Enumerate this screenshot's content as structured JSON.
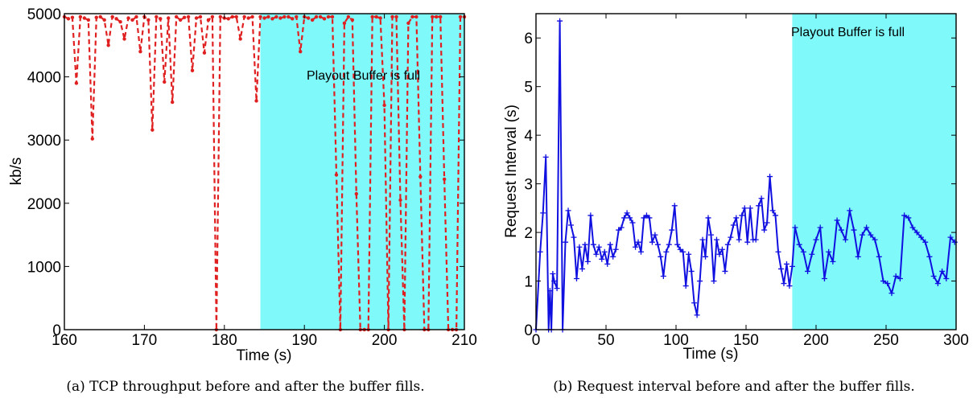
{
  "chart_data": [
    {
      "type": "line",
      "caption": "(a) TCP throughput before and after the buffer fills.",
      "xlabel": "Time (s)",
      "ylabel": "kb/s",
      "xlim": [
        160,
        210
      ],
      "ylim": [
        0,
        5000
      ],
      "xticks": [
        160,
        170,
        180,
        190,
        200,
        210
      ],
      "yticks": [
        0,
        1000,
        2000,
        3000,
        4000,
        5000
      ],
      "grid": false,
      "shaded_region": {
        "x_start": 184.5,
        "x_end": 210,
        "color": "#7ff9fa",
        "label": "Playout Buffer is full"
      },
      "series": [
        {
          "color": "#e02020",
          "style": "dashed-with-dots",
          "x": [
            160.0,
            160.5,
            161.0,
            161.5,
            162.0,
            162.5,
            163.0,
            163.5,
            164.0,
            164.5,
            165.0,
            165.5,
            166.0,
            166.5,
            167.0,
            167.5,
            168.0,
            168.5,
            169.0,
            169.5,
            170.0,
            170.5,
            171.0,
            171.5,
            172.0,
            172.5,
            173.0,
            173.5,
            174.0,
            174.5,
            175.0,
            175.5,
            176.0,
            176.5,
            177.0,
            177.5,
            178.0,
            178.5,
            179.0,
            179.5,
            180.0,
            180.5,
            181.0,
            181.5,
            182.0,
            182.5,
            183.0,
            183.5,
            184.0,
            184.5,
            185.0,
            185.5,
            186.0,
            186.5,
            187.0,
            187.5,
            188.0,
            188.5,
            189.0,
            189.5,
            190.0,
            190.5,
            191.0,
            191.5,
            192.0,
            192.5,
            193.0,
            193.5,
            194.0,
            194.5,
            195.0,
            195.5,
            196.0,
            196.5,
            197.0,
            197.5,
            198.0,
            198.5,
            199.0,
            199.5,
            200.0,
            200.5,
            201.0,
            201.5,
            202.0,
            202.5,
            203.0,
            203.5,
            204.0,
            204.5,
            205.0,
            205.5,
            206.0,
            206.5,
            207.0,
            207.5,
            208.0,
            208.5,
            209.0,
            209.5,
            210.0
          ],
          "y": [
            4950,
            4920,
            4940,
            3900,
            4950,
            4930,
            4900,
            3020,
            4940,
            4950,
            4900,
            4500,
            4950,
            4920,
            4870,
            4600,
            4930,
            4900,
            4950,
            4400,
            4950,
            4900,
            3160,
            4950,
            4920,
            3920,
            4930,
            3600,
            4950,
            4900,
            4940,
            4950,
            4100,
            4930,
            4950,
            4380,
            4900,
            4950,
            0,
            4950,
            4930,
            4920,
            4950,
            4950,
            4600,
            4950,
            4930,
            4950,
            3620,
            4950,
            4930,
            4950,
            4920,
            4950,
            4930,
            4950,
            4950,
            4920,
            4950,
            4400,
            4950,
            4930,
            4900,
            4950,
            4950,
            4920,
            4950,
            4950,
            2450,
            0,
            4850,
            4950,
            4900,
            2150,
            0,
            0,
            0,
            4950,
            4950,
            4930,
            3550,
            0,
            4950,
            4950,
            2050,
            0,
            4850,
            4950,
            4950,
            2420,
            0,
            0,
            4950,
            4950,
            4950,
            2380,
            0,
            0,
            0,
            4950,
            4950
          ]
        }
      ]
    },
    {
      "type": "line",
      "caption": "(b) Request interval before and after the buffer fills.",
      "xlabel": "Time (s)",
      "ylabel": "Request Interval (s)",
      "xlim": [
        0,
        300
      ],
      "ylim": [
        0,
        6.5
      ],
      "xticks": [
        0,
        50,
        100,
        150,
        200,
        250,
        300
      ],
      "yticks": [
        0,
        1,
        2,
        3,
        4,
        5,
        6
      ],
      "grid": false,
      "shaded_region": {
        "x_start": 183,
        "x_end": 300,
        "color": "#7ff9fa",
        "label": "Playout Buffer is full"
      },
      "series": [
        {
          "color": "#1010e0",
          "style": "solid-with-plus",
          "x": [
            0,
            3,
            5,
            7,
            9,
            10,
            11,
            12,
            13,
            15,
            17,
            19,
            21,
            23,
            25,
            27,
            29,
            31,
            33,
            35,
            37,
            39,
            41,
            43,
            45,
            47,
            49,
            51,
            53,
            55,
            57,
            59,
            61,
            63,
            65,
            67,
            69,
            71,
            73,
            75,
            77,
            79,
            81,
            83,
            85,
            87,
            89,
            91,
            93,
            95,
            97,
            99,
            101,
            103,
            105,
            107,
            109,
            111,
            113,
            115,
            117,
            119,
            121,
            123,
            125,
            127,
            129,
            131,
            133,
            135,
            137,
            139,
            141,
            143,
            145,
            147,
            149,
            151,
            153,
            155,
            157,
            159,
            161,
            163,
            165,
            167,
            169,
            171,
            173,
            175,
            177,
            179,
            181,
            183,
            185,
            188,
            191,
            194,
            197,
            200,
            203,
            206,
            209,
            212,
            215,
            218,
            221,
            224,
            227,
            230,
            233,
            236,
            239,
            242,
            245,
            248,
            251,
            254,
            257,
            260,
            263,
            266,
            269,
            272,
            275,
            278,
            281,
            284,
            287,
            290,
            293,
            296,
            299
          ],
          "y": [
            0.0,
            1.6,
            2.4,
            3.55,
            0.0,
            0.8,
            0.0,
            1.15,
            1.0,
            0.85,
            6.35,
            0.0,
            1.8,
            2.45,
            2.15,
            1.9,
            1.05,
            1.7,
            1.25,
            1.75,
            1.4,
            2.35,
            1.75,
            1.55,
            1.7,
            1.45,
            1.6,
            1.35,
            1.75,
            1.5,
            1.65,
            2.05,
            2.1,
            2.3,
            2.4,
            2.3,
            2.2,
            1.7,
            1.8,
            1.6,
            2.3,
            2.35,
            2.3,
            1.8,
            1.95,
            1.75,
            1.5,
            1.1,
            1.6,
            1.75,
            2.05,
            2.55,
            1.75,
            1.65,
            1.6,
            0.9,
            1.55,
            1.2,
            0.55,
            0.3,
            1.0,
            1.85,
            1.5,
            2.3,
            1.95,
            1.0,
            1.85,
            1.55,
            1.65,
            1.2,
            1.75,
            1.9,
            2.15,
            2.3,
            1.85,
            2.35,
            2.5,
            1.8,
            2.5,
            1.85,
            1.85,
            2.55,
            2.7,
            2.05,
            2.2,
            3.15,
            2.45,
            2.35,
            1.6,
            1.25,
            0.95,
            1.35,
            0.9,
            1.3,
            2.1,
            1.75,
            1.6,
            1.2,
            1.55,
            1.85,
            2.1,
            1.05,
            1.6,
            1.4,
            2.25,
            2.05,
            1.85,
            2.45,
            2.05,
            1.5,
            1.95,
            2.1,
            1.95,
            1.85,
            1.5,
            1.0,
            0.95,
            0.75,
            1.1,
            1.05,
            2.35,
            2.3,
            2.1,
            2.0,
            1.9,
            1.8,
            1.5,
            1.1,
            0.95,
            1.2,
            1.05,
            1.9,
            1.8
          ]
        }
      ]
    }
  ]
}
